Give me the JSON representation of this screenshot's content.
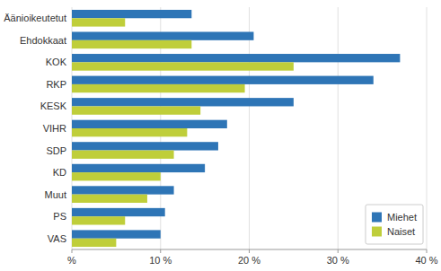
{
  "chart_data": {
    "type": "bar",
    "orientation": "horizontal",
    "categories": [
      "Äänioikeutetut",
      "Ehdokkaat",
      "KOK",
      "RKP",
      "KESK",
      "VIHR",
      "SDP",
      "KD",
      "Muut",
      "PS",
      "VAS"
    ],
    "series": [
      {
        "name": "Miehet",
        "color": "#2E75B6",
        "values": [
          13.5,
          20.5,
          37.0,
          34.0,
          25.0,
          17.5,
          16.5,
          15.0,
          11.5,
          10.5,
          10.0
        ]
      },
      {
        "name": "Naiset",
        "color": "#BFCE3A",
        "values": [
          6.0,
          13.5,
          25.0,
          19.5,
          14.5,
          13.0,
          11.5,
          10.0,
          8.5,
          6.0,
          5.0
        ]
      }
    ],
    "xlim": [
      0,
      40
    ],
    "xticks": [
      {
        "value": 0,
        "label": "%"
      },
      {
        "value": 10,
        "label": "10 %"
      },
      {
        "value": 20,
        "label": "20 %"
      },
      {
        "value": 30,
        "label": "30 %"
      },
      {
        "value": 40,
        "label": "40 %"
      }
    ],
    "grid": true,
    "legend": "lower right"
  }
}
